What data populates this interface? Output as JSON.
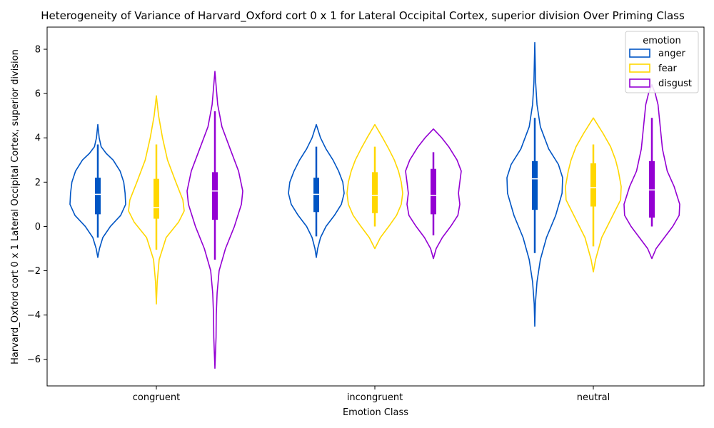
{
  "chart_data": {
    "type": "violin",
    "title": "Heterogeneity of Variance of Harvard_Oxford cort 0 x 1 for Lateral Occipital Cortex, superior division Over Priming Class",
    "xlabel": "Emotion Class",
    "ylabel": "Harvard_Oxford cort 0 x 1 Lateral Occipital Cortex, superior division",
    "categories": [
      "congruent",
      "incongruent",
      "neutral"
    ],
    "ylim": [
      -7.2,
      9.0
    ],
    "yticks": [
      -6,
      -4,
      -2,
      0,
      2,
      4,
      6,
      8
    ],
    "legend": {
      "title": "emotion",
      "position": "top-right"
    },
    "series": [
      {
        "name": "anger",
        "color": "#0055c4",
        "violins": [
          {
            "min": -1.4,
            "max": 4.6,
            "whisker_low": -0.5,
            "whisker_high": 3.7,
            "q1": 0.55,
            "median": 1.45,
            "q3": 2.2,
            "profile": [
              [
                -1.4,
                0.0
              ],
              [
                -1.0,
                0.06
              ],
              [
                -0.5,
                0.18
              ],
              [
                0.0,
                0.45
              ],
              [
                0.5,
                0.82
              ],
              [
                1.0,
                1.0
              ],
              [
                1.5,
                0.98
              ],
              [
                2.0,
                0.93
              ],
              [
                2.5,
                0.8
              ],
              [
                3.0,
                0.55
              ],
              [
                3.3,
                0.3
              ],
              [
                3.6,
                0.12
              ],
              [
                4.0,
                0.05
              ],
              [
                4.6,
                0.0
              ]
            ]
          },
          {
            "min": -1.4,
            "max": 4.6,
            "whisker_low": -0.45,
            "whisker_high": 3.6,
            "q1": 0.65,
            "median": 1.45,
            "q3": 2.2,
            "profile": [
              [
                -1.4,
                0.0
              ],
              [
                -1.0,
                0.05
              ],
              [
                -0.5,
                0.15
              ],
              [
                0.0,
                0.35
              ],
              [
                0.5,
                0.65
              ],
              [
                1.0,
                0.9
              ],
              [
                1.5,
                1.0
              ],
              [
                2.0,
                0.95
              ],
              [
                2.5,
                0.8
              ],
              [
                3.0,
                0.6
              ],
              [
                3.5,
                0.35
              ],
              [
                4.0,
                0.15
              ],
              [
                4.6,
                0.0
              ]
            ]
          },
          {
            "min": -4.5,
            "max": 8.3,
            "whisker_low": -1.2,
            "whisker_high": 4.9,
            "q1": 0.75,
            "median": 2.15,
            "q3": 2.95,
            "profile": [
              [
                -4.5,
                0.0
              ],
              [
                -3.5,
                0.02
              ],
              [
                -2.5,
                0.08
              ],
              [
                -1.5,
                0.2
              ],
              [
                -0.5,
                0.42
              ],
              [
                0.5,
                0.75
              ],
              [
                1.5,
                0.98
              ],
              [
                2.2,
                1.0
              ],
              [
                2.8,
                0.85
              ],
              [
                3.5,
                0.5
              ],
              [
                4.5,
                0.2
              ],
              [
                5.5,
                0.08
              ],
              [
                6.5,
                0.03
              ],
              [
                8.3,
                0.0
              ]
            ]
          }
        ]
      },
      {
        "name": "fear",
        "color": "#ffd700",
        "violins": [
          {
            "min": -3.5,
            "max": 5.9,
            "whisker_low": -1.05,
            "whisker_high": 3.7,
            "q1": 0.35,
            "median": 0.85,
            "q3": 2.15,
            "profile": [
              [
                -3.5,
                0.0
              ],
              [
                -2.5,
                0.03
              ],
              [
                -1.5,
                0.1
              ],
              [
                -0.5,
                0.35
              ],
              [
                0.2,
                0.8
              ],
              [
                0.7,
                1.0
              ],
              [
                1.2,
                0.95
              ],
              [
                2.0,
                0.7
              ],
              [
                3.0,
                0.4
              ],
              [
                4.0,
                0.22
              ],
              [
                5.0,
                0.08
              ],
              [
                5.9,
                0.0
              ]
            ]
          },
          {
            "min": -1.0,
            "max": 4.6,
            "whisker_low": 0.0,
            "whisker_high": 3.6,
            "q1": 0.6,
            "median": 1.4,
            "q3": 2.45,
            "profile": [
              [
                -1.0,
                0.0
              ],
              [
                -0.5,
                0.2
              ],
              [
                0.0,
                0.5
              ],
              [
                0.5,
                0.78
              ],
              [
                1.0,
                0.95
              ],
              [
                1.5,
                1.0
              ],
              [
                2.0,
                0.95
              ],
              [
                2.5,
                0.85
              ],
              [
                3.0,
                0.7
              ],
              [
                3.5,
                0.5
              ],
              [
                4.0,
                0.28
              ],
              [
                4.6,
                0.0
              ]
            ]
          },
          {
            "min": -2.05,
            "max": 4.9,
            "whisker_low": -0.9,
            "whisker_high": 3.7,
            "q1": 0.9,
            "median": 1.75,
            "q3": 2.85,
            "profile": [
              [
                -2.05,
                0.0
              ],
              [
                -1.5,
                0.08
              ],
              [
                -0.5,
                0.3
              ],
              [
                0.5,
                0.7
              ],
              [
                1.2,
                0.98
              ],
              [
                1.8,
                1.0
              ],
              [
                2.5,
                0.9
              ],
              [
                3.0,
                0.8
              ],
              [
                3.6,
                0.62
              ],
              [
                4.2,
                0.35
              ],
              [
                4.9,
                0.0
              ]
            ]
          }
        ]
      },
      {
        "name": "disgust",
        "color": "#9400d3",
        "violins": [
          {
            "min": -6.4,
            "max": 7.0,
            "whisker_low": -1.5,
            "whisker_high": 5.2,
            "q1": 0.3,
            "median": 1.6,
            "q3": 2.45,
            "profile": [
              [
                -6.4,
                0.0
              ],
              [
                -5.0,
                0.04
              ],
              [
                -4.0,
                0.05
              ],
              [
                -3.0,
                0.08
              ],
              [
                -2.0,
                0.15
              ],
              [
                -1.0,
                0.38
              ],
              [
                0.0,
                0.7
              ],
              [
                1.0,
                0.95
              ],
              [
                1.6,
                1.0
              ],
              [
                2.5,
                0.85
              ],
              [
                3.5,
                0.55
              ],
              [
                4.5,
                0.25
              ],
              [
                5.5,
                0.1
              ],
              [
                7.0,
                0.0
              ]
            ]
          },
          {
            "min": -1.45,
            "max": 4.4,
            "whisker_low": -0.4,
            "whisker_high": 3.35,
            "q1": 0.55,
            "median": 1.4,
            "q3": 2.6,
            "profile": [
              [
                -1.45,
                0.0
              ],
              [
                -1.0,
                0.1
              ],
              [
                -0.5,
                0.32
              ],
              [
                0.0,
                0.62
              ],
              [
                0.5,
                0.88
              ],
              [
                1.0,
                0.95
              ],
              [
                1.5,
                0.9
              ],
              [
                2.0,
                0.95
              ],
              [
                2.5,
                1.0
              ],
              [
                3.0,
                0.85
              ],
              [
                3.6,
                0.55
              ],
              [
                4.0,
                0.3
              ],
              [
                4.4,
                0.0
              ]
            ]
          },
          {
            "min": -1.45,
            "max": 6.4,
            "whisker_low": 0.0,
            "whisker_high": 4.9,
            "q1": 0.4,
            "median": 1.65,
            "q3": 2.95,
            "profile": [
              [
                -1.45,
                0.0
              ],
              [
                -1.0,
                0.15
              ],
              [
                -0.5,
                0.45
              ],
              [
                0.0,
                0.75
              ],
              [
                0.5,
                0.98
              ],
              [
                1.0,
                1.0
              ],
              [
                1.8,
                0.8
              ],
              [
                2.5,
                0.55
              ],
              [
                3.5,
                0.38
              ],
              [
                4.5,
                0.3
              ],
              [
                5.5,
                0.22
              ],
              [
                6.0,
                0.12
              ],
              [
                6.4,
                0.0
              ]
            ]
          }
        ]
      }
    ]
  }
}
